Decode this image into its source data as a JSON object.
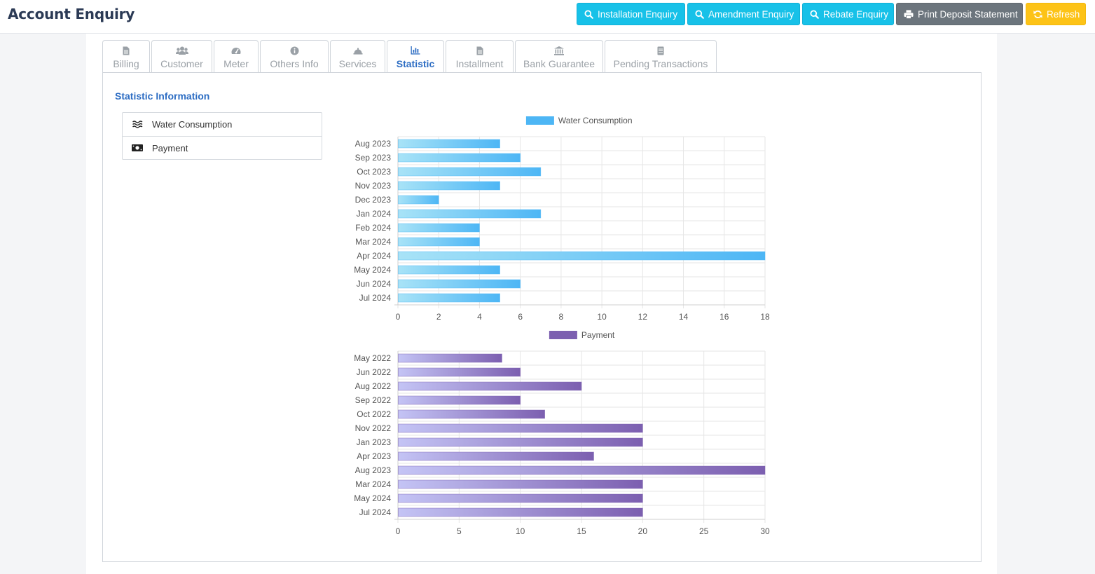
{
  "header": {
    "title": "Account Enquiry",
    "buttons": {
      "installation": "Installation Enquiry",
      "amendment": "Amendment Enquiry",
      "rebate": "Rebate Enquiry",
      "print_deposit": "Print Deposit Statement",
      "refresh": "Refresh"
    },
    "colors": {
      "cyan": "#17c1e8",
      "gray": "#6c757d",
      "yellow": "#fdc317"
    }
  },
  "tabs": [
    {
      "label": "Billing",
      "icon": "file-icon"
    },
    {
      "label": "Customer",
      "icon": "users-icon"
    },
    {
      "label": "Meter",
      "icon": "gauge-icon"
    },
    {
      "label": "Others Info",
      "icon": "info-icon"
    },
    {
      "label": "Services",
      "icon": "bell-icon"
    },
    {
      "label": "Statistic",
      "icon": "bar-chart-icon",
      "active": true
    },
    {
      "label": "Installment",
      "icon": "file-icon"
    },
    {
      "label": "Bank Guarantee",
      "icon": "bank-icon"
    },
    {
      "label": "Pending Transactions",
      "icon": "list-icon"
    }
  ],
  "statistic": {
    "title": "Statistic Information",
    "menu": [
      {
        "label": "Water Consumption",
        "icon": "water-icon"
      },
      {
        "label": "Payment",
        "icon": "money-icon"
      }
    ]
  },
  "chart_data": [
    {
      "type": "bar",
      "orientation": "horizontal",
      "categories": [
        "Aug 2023",
        "Sep 2023",
        "Oct 2023",
        "Nov 2023",
        "Dec 2023",
        "Jan 2024",
        "Feb 2024",
        "Mar 2024",
        "Apr 2024",
        "May 2024",
        "Jun 2024",
        "Jul 2024"
      ],
      "series": [
        {
          "name": "Water Consumption",
          "values": [
            5,
            6,
            7,
            5,
            2,
            7,
            4,
            4,
            18,
            5,
            6,
            5
          ]
        }
      ],
      "xlim": [
        0,
        18
      ],
      "xticks": [
        0,
        2,
        4,
        6,
        8,
        10,
        12,
        14,
        16,
        18
      ],
      "grid": true,
      "legend": "top-center",
      "colors": {
        "start": "#a8e3f7",
        "end": "#4db6f5"
      }
    },
    {
      "type": "bar",
      "orientation": "horizontal",
      "categories": [
        "May 2022",
        "Jun 2022",
        "Aug 2022",
        "Sep 2022",
        "Oct 2022",
        "Nov 2022",
        "Jan 2023",
        "Apr 2023",
        "Aug 2023",
        "Mar 2024",
        "May 2024",
        "Jul 2024"
      ],
      "series": [
        {
          "name": "Payment",
          "values": [
            8.5,
            10,
            15,
            10,
            12,
            20,
            20,
            16,
            30,
            20,
            20,
            20
          ]
        }
      ],
      "xlim": [
        0,
        30
      ],
      "xticks": [
        0,
        5,
        10,
        15,
        20,
        25,
        30
      ],
      "grid": true,
      "legend": "top-center",
      "colors": {
        "start": "#c4c4f5",
        "end": "#7c5fb0"
      }
    }
  ]
}
